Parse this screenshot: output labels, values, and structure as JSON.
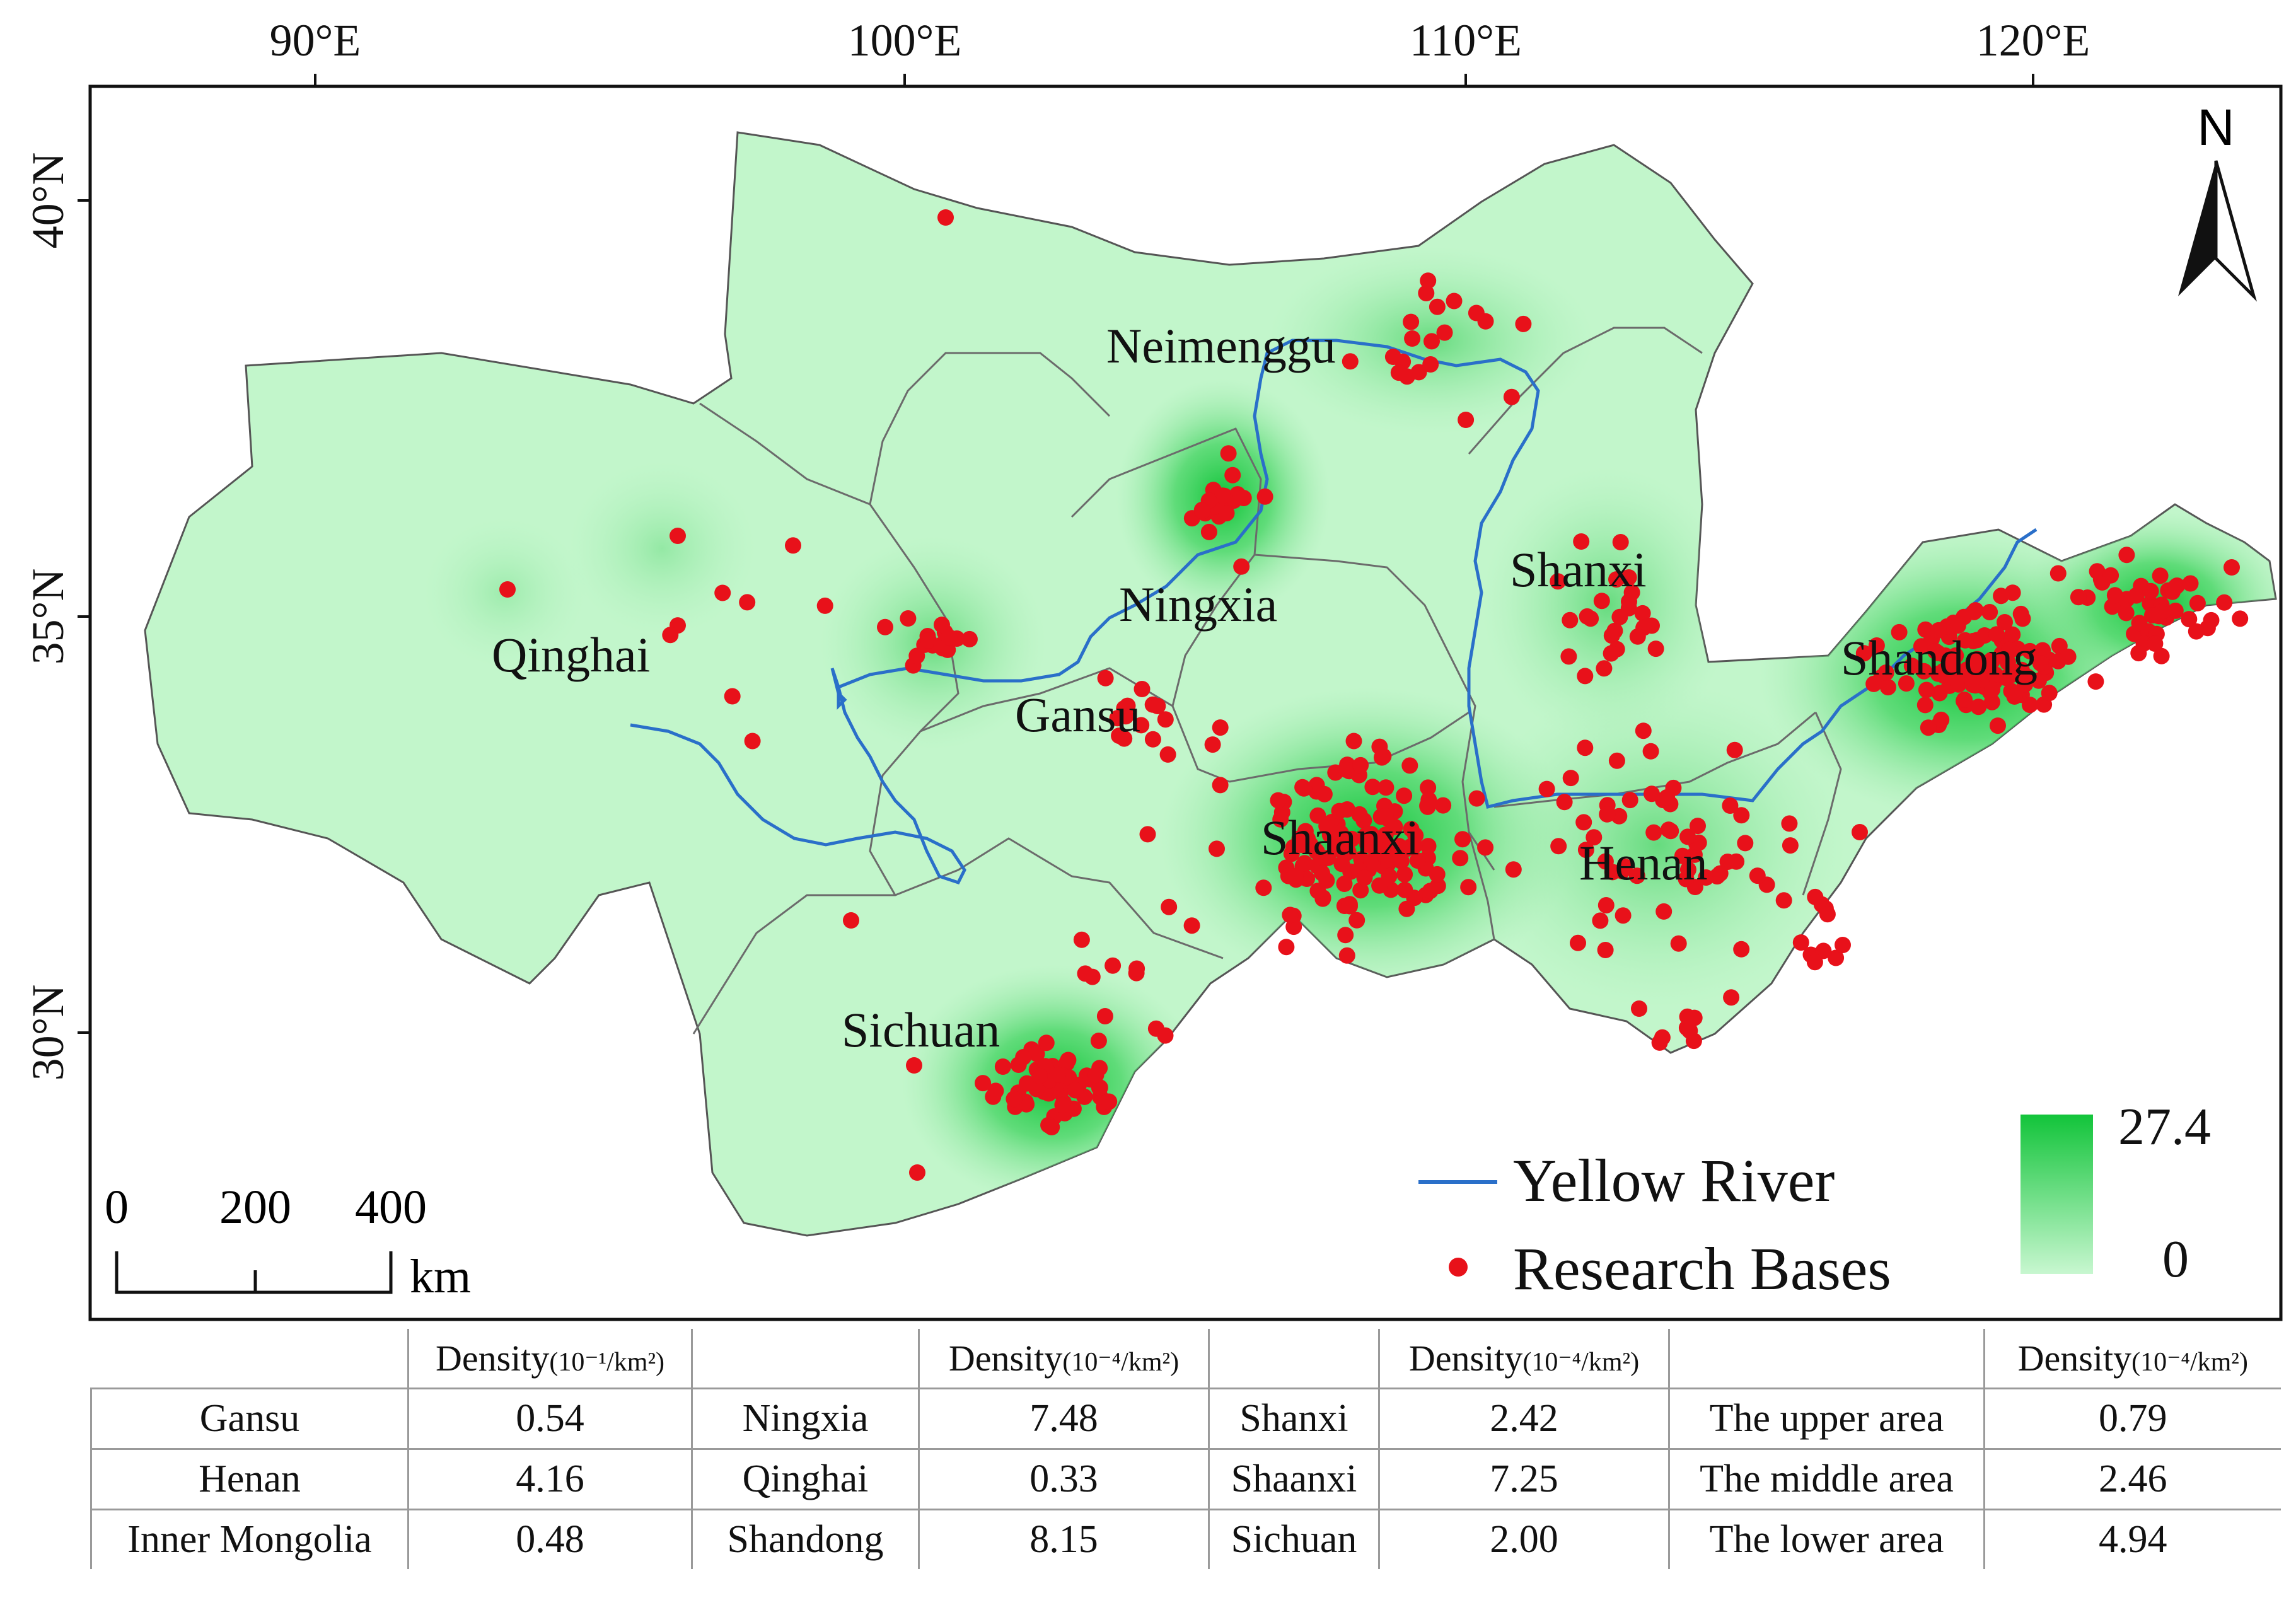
{
  "axes": {
    "lon_labels": [
      "90°E",
      "100°E",
      "110°E",
      "120°E"
    ],
    "lat_labels": [
      "40°N",
      "35°N",
      "30°N"
    ]
  },
  "regions": {
    "qinghai": "Qinghai",
    "gansu": "Gansu",
    "sichuan": "Sichuan",
    "neimenggu": "Neimenggu",
    "ningxia": "Ningxia",
    "shaanxi": "Shaanxi",
    "shanxi": "Shanxi",
    "henan": "Henan",
    "shandong": "Shandong"
  },
  "north_arrow": {
    "label": "N"
  },
  "scale_bar": {
    "ticks": [
      "0",
      "200",
      "400"
    ],
    "unit": "km"
  },
  "legend": {
    "river_label": "Yellow River",
    "bases_label": "Research Bases",
    "max_value": "27.4",
    "min_value": "0"
  },
  "colors": {
    "base_fill": "#c2f6cb",
    "hotspot": "#1cc83f",
    "river": "#2a6fc9",
    "points": "#e8111a",
    "border": "#6b6b6b"
  },
  "table": {
    "header_main": "Density",
    "header_unit": "(10⁻⁴/km²)",
    "header_unit_first": "(10⁻¹/km²)",
    "rows": [
      [
        {
          "name": "Gansu",
          "value": "0.54"
        },
        {
          "name": "Ningxia",
          "value": "7.48"
        },
        {
          "name": "Shanxi",
          "value": "2.42"
        },
        {
          "name": "The upper area",
          "value": "0.79"
        }
      ],
      [
        {
          "name": "Henan",
          "value": "4.16"
        },
        {
          "name": "Qinghai",
          "value": "0.33"
        },
        {
          "name": "Shaanxi",
          "value": "7.25"
        },
        {
          "name": "The middle area",
          "value": "2.46"
        }
      ],
      [
        {
          "name": "Inner Mongolia",
          "value": "0.48"
        },
        {
          "name": "Shandong",
          "value": "8.15"
        },
        {
          "name": "Sichuan",
          "value": "2.00"
        },
        {
          "name": "The lower area",
          "value": "4.94"
        }
      ]
    ]
  }
}
